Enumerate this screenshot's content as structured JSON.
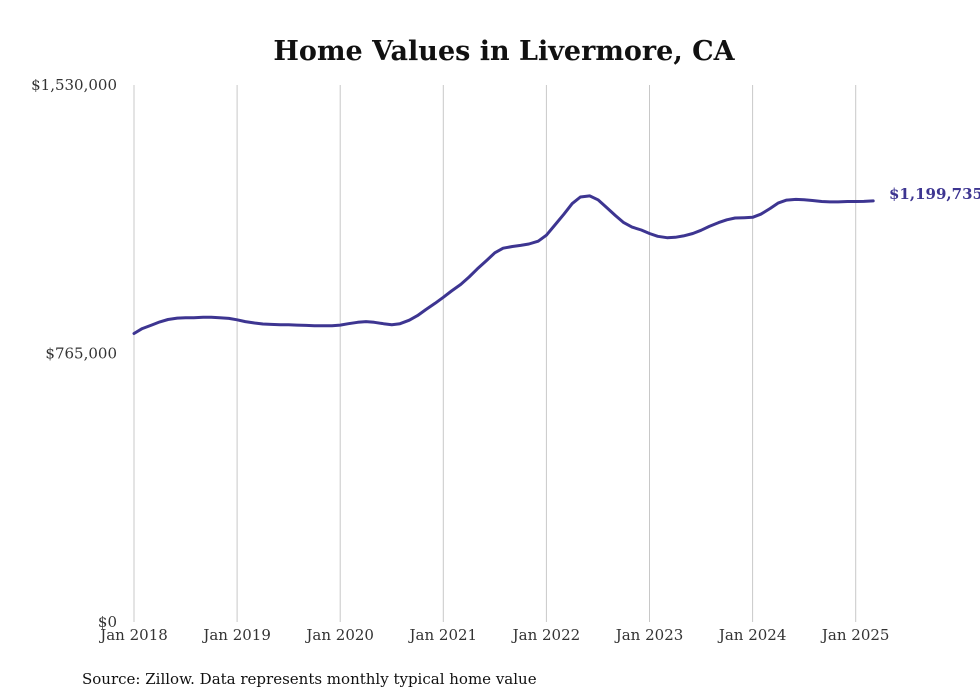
{
  "chart_data": {
    "type": "line",
    "title": "Home Values in Livermore, CA",
    "xlabel": "",
    "ylabel": "",
    "ylim": [
      0,
      1530000
    ],
    "y_ticks": [
      {
        "value": 1530000,
        "label": "$1,530,000"
      },
      {
        "value": 765000,
        "label": "$765,000"
      },
      {
        "value": 0,
        "label": "$0"
      }
    ],
    "x_ticks": [
      {
        "value": 2018.0,
        "label": "Jan 2018"
      },
      {
        "value": 2019.0,
        "label": "Jan 2019"
      },
      {
        "value": 2020.0,
        "label": "Jan 2020"
      },
      {
        "value": 2021.0,
        "label": "Jan 2021"
      },
      {
        "value": 2022.0,
        "label": "Jan 2022"
      },
      {
        "value": 2023.0,
        "label": "Jan 2023"
      },
      {
        "value": 2024.0,
        "label": "Jan 2024"
      },
      {
        "value": 2025.0,
        "label": "Jan 2025"
      }
    ],
    "xlim": [
      2018.0,
      2025.2
    ],
    "grid": "vertical",
    "color": "#3d3591",
    "end_label": "$1,199,735",
    "series": [
      {
        "points": [
          [
            2018.0,
            822000
          ],
          [
            2018.08,
            836000
          ],
          [
            2018.17,
            846000
          ],
          [
            2018.25,
            855000
          ],
          [
            2018.33,
            862000
          ],
          [
            2018.42,
            866000
          ],
          [
            2018.5,
            867000
          ],
          [
            2018.58,
            867000
          ],
          [
            2018.67,
            868000
          ],
          [
            2018.75,
            868000
          ],
          [
            2018.83,
            867000
          ],
          [
            2018.92,
            865000
          ],
          [
            2019.0,
            861000
          ],
          [
            2019.08,
            856000
          ],
          [
            2019.17,
            852000
          ],
          [
            2019.25,
            849000
          ],
          [
            2019.33,
            848000
          ],
          [
            2019.42,
            847000
          ],
          [
            2019.5,
            847000
          ],
          [
            2019.58,
            846000
          ],
          [
            2019.67,
            845000
          ],
          [
            2019.75,
            844000
          ],
          [
            2019.83,
            844000
          ],
          [
            2019.92,
            844000
          ],
          [
            2020.0,
            846000
          ],
          [
            2020.08,
            850000
          ],
          [
            2020.17,
            854000
          ],
          [
            2020.25,
            856000
          ],
          [
            2020.33,
            854000
          ],
          [
            2020.42,
            850000
          ],
          [
            2020.5,
            847000
          ],
          [
            2020.58,
            850000
          ],
          [
            2020.67,
            860000
          ],
          [
            2020.75,
            873000
          ],
          [
            2020.83,
            890000
          ],
          [
            2020.92,
            908000
          ],
          [
            2021.0,
            925000
          ],
          [
            2021.08,
            943000
          ],
          [
            2021.17,
            962000
          ],
          [
            2021.25,
            983000
          ],
          [
            2021.33,
            1006000
          ],
          [
            2021.42,
            1030000
          ],
          [
            2021.5,
            1052000
          ],
          [
            2021.58,
            1065000
          ],
          [
            2021.67,
            1070000
          ],
          [
            2021.75,
            1073000
          ],
          [
            2021.83,
            1077000
          ],
          [
            2021.92,
            1085000
          ],
          [
            2022.0,
            1102000
          ],
          [
            2022.08,
            1130000
          ],
          [
            2022.17,
            1162000
          ],
          [
            2022.25,
            1192000
          ],
          [
            2022.33,
            1211000
          ],
          [
            2022.42,
            1214000
          ],
          [
            2022.5,
            1203000
          ],
          [
            2022.58,
            1182000
          ],
          [
            2022.67,
            1158000
          ],
          [
            2022.75,
            1138000
          ],
          [
            2022.83,
            1125000
          ],
          [
            2022.92,
            1117000
          ],
          [
            2023.0,
            1107000
          ],
          [
            2023.08,
            1099000
          ],
          [
            2023.17,
            1095000
          ],
          [
            2023.25,
            1096000
          ],
          [
            2023.33,
            1100000
          ],
          [
            2023.42,
            1107000
          ],
          [
            2023.5,
            1116000
          ],
          [
            2023.58,
            1127000
          ],
          [
            2023.67,
            1138000
          ],
          [
            2023.75,
            1146000
          ],
          [
            2023.83,
            1151000
          ],
          [
            2023.92,
            1152000
          ],
          [
            2024.0,
            1153000
          ],
          [
            2024.08,
            1162000
          ],
          [
            2024.17,
            1178000
          ],
          [
            2024.25,
            1194000
          ],
          [
            2024.33,
            1202000
          ],
          [
            2024.42,
            1204000
          ],
          [
            2024.5,
            1203000
          ],
          [
            2024.58,
            1201000
          ],
          [
            2024.67,
            1198000
          ],
          [
            2024.75,
            1197000
          ],
          [
            2024.83,
            1197000
          ],
          [
            2024.92,
            1198000
          ],
          [
            2025.0,
            1198000
          ],
          [
            2025.08,
            1198500
          ],
          [
            2025.17,
            1199735
          ]
        ]
      }
    ]
  },
  "footer": {
    "source": "Source: Zillow. Data represents monthly typical home value"
  }
}
